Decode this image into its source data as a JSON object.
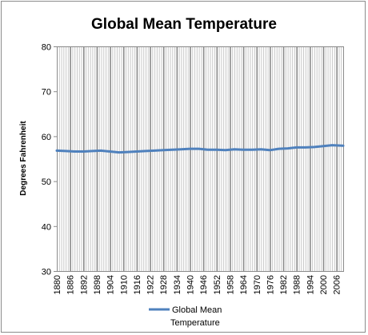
{
  "chart_data": {
    "type": "line",
    "title": "Global Mean Temperature",
    "xlabel": "",
    "ylabel": "Degrees Fahrenheit",
    "xlim": [
      1880,
      2009
    ],
    "ylim": [
      30,
      80
    ],
    "yticks": [
      30,
      40,
      50,
      60,
      70,
      80
    ],
    "xtick_labels": [
      "1880",
      "1886",
      "1892",
      "1898",
      "1904",
      "1910",
      "1916",
      "1922",
      "1928",
      "1934",
      "1940",
      "1946",
      "1952",
      "1958",
      "1964",
      "1970",
      "1976",
      "1982",
      "1988",
      "1994",
      "2000",
      "2006"
    ],
    "grid": "vertical",
    "legend": "bottom",
    "legend_label": [
      "Global Mean",
      "Temperature"
    ],
    "line_color": "#4f81bd",
    "series": [
      {
        "name": "Global Mean Temperature",
        "x": [
          1880,
          1884,
          1888,
          1892,
          1896,
          1900,
          1904,
          1908,
          1912,
          1916,
          1920,
          1924,
          1928,
          1932,
          1936,
          1940,
          1944,
          1948,
          1952,
          1956,
          1960,
          1964,
          1968,
          1972,
          1976,
          1980,
          1984,
          1988,
          1992,
          1996,
          2000,
          2004,
          2009
        ],
        "y": [
          56.8,
          56.7,
          56.6,
          56.6,
          56.7,
          56.8,
          56.6,
          56.4,
          56.5,
          56.6,
          56.7,
          56.8,
          56.9,
          57.0,
          57.1,
          57.2,
          57.2,
          57.0,
          57.0,
          56.9,
          57.1,
          57.0,
          57.0,
          57.1,
          56.9,
          57.2,
          57.3,
          57.5,
          57.5,
          57.6,
          57.8,
          58.0,
          57.9
        ]
      }
    ]
  }
}
